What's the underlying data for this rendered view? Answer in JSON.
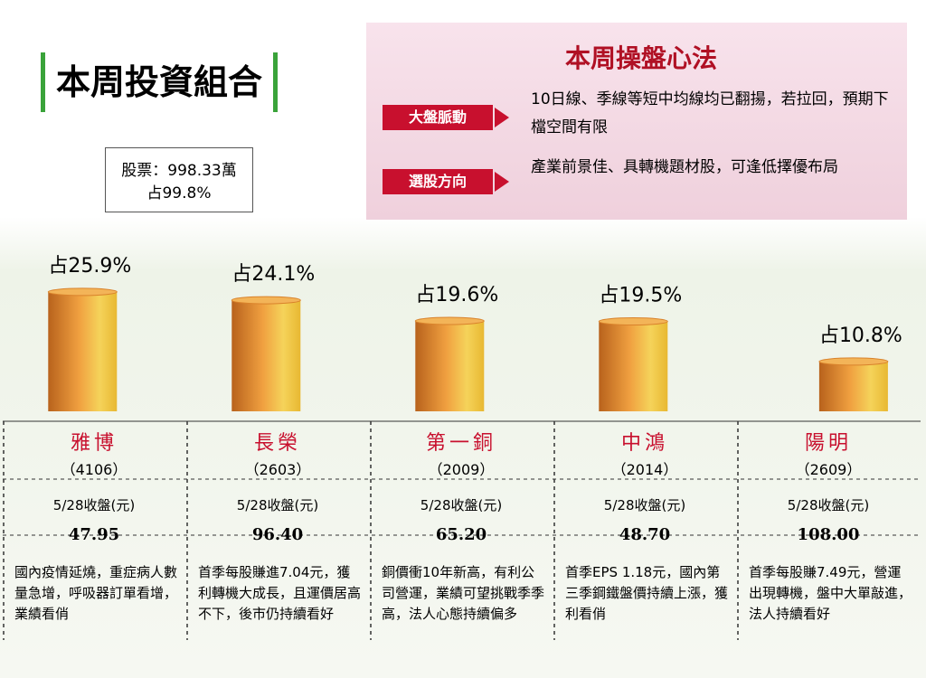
{
  "header": {
    "title": "本周投資組合"
  },
  "summary": {
    "line1": "股票：998.33萬",
    "line2": "占99.8%"
  },
  "strategy": {
    "title": "本周操盤心法",
    "items": [
      {
        "label": "大盤脈動",
        "text": "10日線、季線等短中均線均已翻揚，若拉回，預期下檔空間有限"
      },
      {
        "label": "選股方向",
        "text": "產業前景佳、具轉機題材股，可逢低擇優布局"
      }
    ]
  },
  "chart_data": {
    "type": "bar",
    "categories": [
      "雅博",
      "長榮",
      "第一銅",
      "中鴻",
      "陽明"
    ],
    "values": [
      25.9,
      24.1,
      19.6,
      19.5,
      10.8
    ],
    "value_labels": [
      "占25.9%",
      "占24.1%",
      "占19.6%",
      "占19.5%",
      "占10.8%"
    ],
    "color": "#d9822b"
  },
  "stocks": [
    {
      "code": "（4106）",
      "close_label": "5/28收盤(元)",
      "price": "47.95",
      "note": "國內疫情延燒，重症病人數量急增，呼吸器訂單看增，業績看俏"
    },
    {
      "code": "（2603）",
      "close_label": "5/28收盤(元)",
      "price": "96.40",
      "note": "首季每股賺進7.04元，獲利轉機大成長，且運價居高不下，後市仍持續看好"
    },
    {
      "code": "（2009）",
      "close_label": "5/28收盤(元)",
      "price": "65.20",
      "note": "銅價衝10年新高，有利公司營運，業績可望挑戰季季高，法人心態持續偏多"
    },
    {
      "code": "（2014）",
      "close_label": "5/28收盤(元)",
      "price": "48.70",
      "note": "首季EPS 1.18元，國內第三季鋼鐵盤價持續上漲，獲利看俏"
    },
    {
      "code": "（2609）",
      "close_label": "5/28收盤(元)",
      "price": "108.00",
      "note": "首季每股賺7.49元，營運出現轉機，盤中大單敲進，法人持續看好"
    }
  ]
}
